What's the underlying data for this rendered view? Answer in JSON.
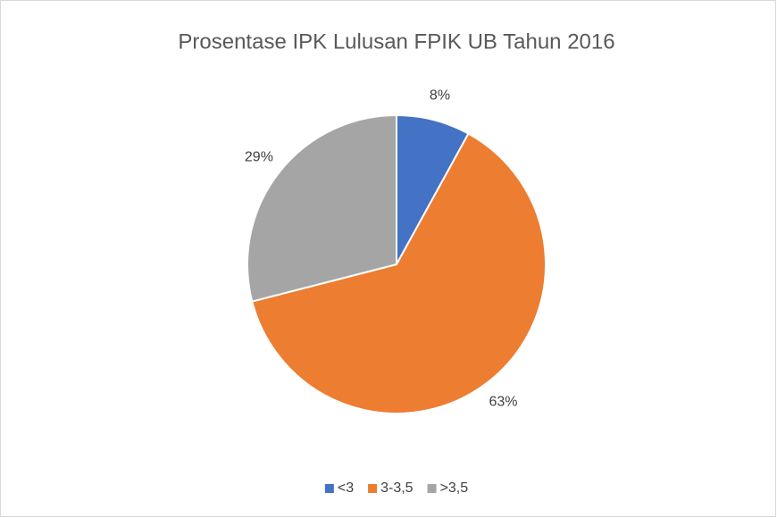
{
  "chart_data": {
    "type": "pie",
    "title": "Prosentase IPK Lulusan FPIK UB Tahun 2016",
    "categories": [
      "<3",
      "3-3,5",
      ">3,5"
    ],
    "values": [
      8,
      63,
      29
    ],
    "value_labels": [
      "8%",
      "63%",
      "29%"
    ],
    "colors": [
      "#4472c4",
      "#ed7d31",
      "#a5a5a5"
    ],
    "legend": "bottom"
  }
}
